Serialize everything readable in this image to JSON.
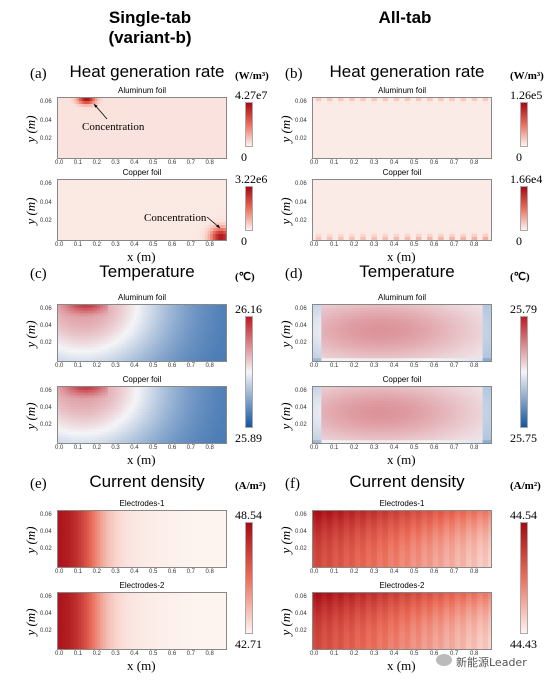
{
  "columns": {
    "left": "Single-tab",
    "left_sub": "(variant-b)",
    "right": "All-tab"
  },
  "chart_data": [
    {
      "id": "a",
      "label": "(a)",
      "type": "heatmap",
      "title": "Heat generation rate",
      "quantity": "heat",
      "subplots": [
        "Aluminum foil",
        "Copper foil"
      ],
      "colorbar": [
        {
          "max": "4.27e7",
          "min": "0"
        },
        {
          "max": "3.22e6",
          "min": "0"
        }
      ],
      "unit": "(W/m³)",
      "xlabel": "x (m)",
      "ylabel": "y (m)",
      "annotations": [
        "Concentration",
        "Concentration"
      ]
    },
    {
      "id": "b",
      "label": "(b)",
      "type": "heatmap",
      "title": "Heat generation rate",
      "quantity": "heat",
      "subplots": [
        "Aluminum foil",
        "Copper foil"
      ],
      "colorbar": [
        {
          "max": "1.26e5",
          "min": "0"
        },
        {
          "max": "1.66e4",
          "min": "0"
        }
      ],
      "unit": "(W/m³)",
      "xlabel": "x (m)",
      "ylabel": "y (m)"
    },
    {
      "id": "c",
      "label": "(c)",
      "type": "heatmap",
      "title": "Temperature",
      "quantity": "temperature",
      "subplots": [
        "Aluminum foil",
        "Copper foil"
      ],
      "colorbar": [
        {
          "max": "26.16",
          "min": "25.89"
        }
      ],
      "unit": "(℃)",
      "xlabel": "x (m)",
      "ylabel": "y (m)"
    },
    {
      "id": "d",
      "label": "(d)",
      "type": "heatmap",
      "title": "Temperature",
      "quantity": "temperature",
      "subplots": [
        "Aluminum foil",
        "Copper foil"
      ],
      "colorbar": [
        {
          "max": "25.79",
          "min": "25.75"
        }
      ],
      "unit": "(℃)",
      "xlabel": "x (m)",
      "ylabel": "y (m)"
    },
    {
      "id": "e",
      "label": "(e)",
      "type": "heatmap",
      "title": "Current density",
      "quantity": "current",
      "subplots": [
        "Electrodes-1",
        "Electrodes-2"
      ],
      "colorbar": [
        {
          "max": "48.54",
          "min": "42.71"
        }
      ],
      "unit": "(A/m²)",
      "xlabel": "x (m)",
      "ylabel": "y (m)"
    },
    {
      "id": "f",
      "label": "(f)",
      "type": "heatmap",
      "title": "Current density",
      "quantity": "current",
      "subplots": [
        "Electrodes-1",
        "Electrodes-2"
      ],
      "colorbar": [
        {
          "max": "44.54",
          "min": "44.43"
        }
      ],
      "unit": "(A/m²)",
      "xlabel": "x (m)",
      "ylabel": "y (m)"
    }
  ],
  "axes": {
    "x_ticks": [
      "0.0",
      "0.1",
      "0.2",
      "0.3",
      "0.4",
      "0.5",
      "0.6",
      "0.7",
      "0.8"
    ],
    "y_ticks": [
      "0.06",
      "0.04",
      "0.02"
    ]
  },
  "watermark": "新能源Leader"
}
